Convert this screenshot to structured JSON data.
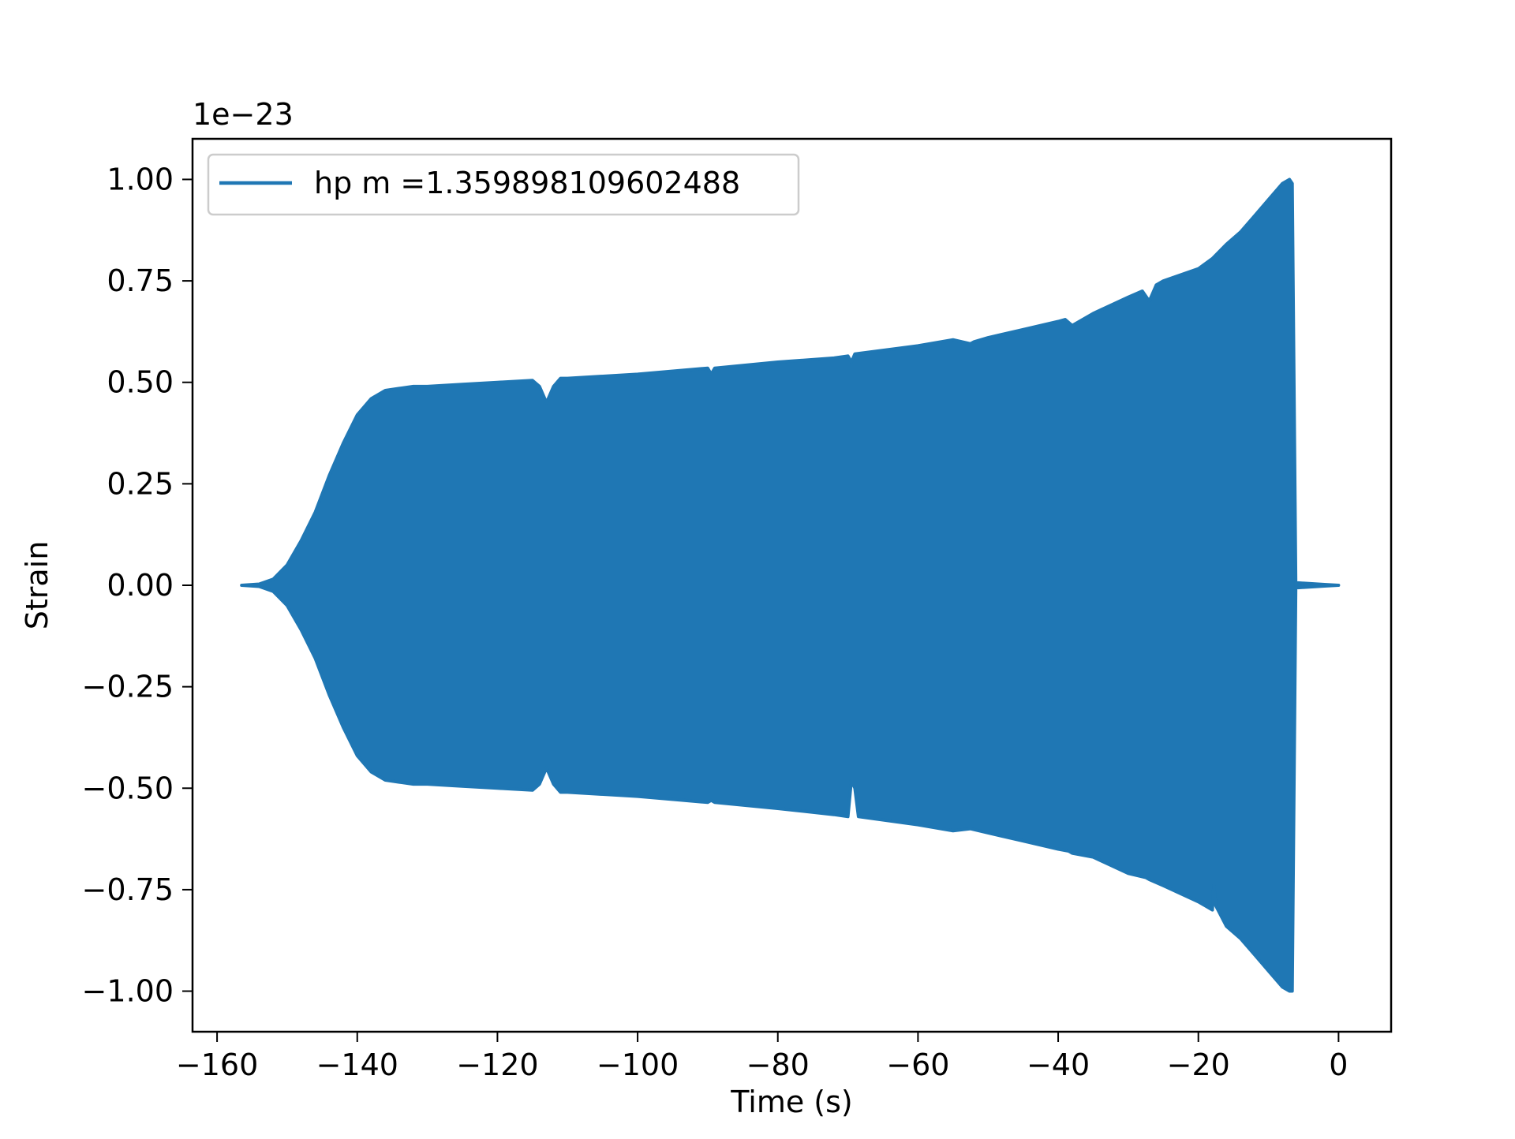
{
  "chart_data": {
    "type": "line",
    "title": "",
    "xlabel": "Time (s)",
    "ylabel": "Strain",
    "y_offset_label": "1e−23",
    "xlim": [
      -163.5,
      7.5
    ],
    "ylim": [
      -1.1,
      1.1
    ],
    "x_ticks": [
      -160,
      -140,
      -120,
      -100,
      -80,
      -60,
      -40,
      -20,
      0
    ],
    "x_tick_labels": [
      "−160",
      "−140",
      "−120",
      "−100",
      "−80",
      "−60",
      "−40",
      "−20",
      "0"
    ],
    "y_ticks": [
      1.0,
      0.75,
      0.5,
      0.25,
      0.0,
      -0.25,
      -0.5,
      -0.75,
      -1.0
    ],
    "y_tick_labels": [
      "1.00",
      "0.75",
      "0.50",
      "0.25",
      "0.00",
      "−0.25",
      "−0.50",
      "−0.75",
      "−1.00"
    ],
    "grid": false,
    "legend_position": "top-left",
    "series": [
      {
        "name": "hp m =1.359898109602488",
        "color": "#1f77b4",
        "envelope_upper": {
          "x": [
            -156.5,
            -154,
            -152,
            -150,
            -148,
            -146,
            -144,
            -142,
            -140,
            -138,
            -136,
            -134,
            -132,
            -130,
            -125,
            -120,
            -115,
            -114,
            -113,
            -112,
            -111,
            -110,
            -100,
            -90,
            -89.5,
            -89,
            -80,
            -72,
            -70,
            -69.5,
            -69,
            -60,
            -55,
            -52.5,
            -52,
            -50,
            -45,
            -40,
            -39,
            -38,
            -35,
            -30,
            -28,
            -27,
            -26,
            -25,
            -20,
            -18,
            -16,
            -14,
            -12,
            -10,
            -8,
            -7,
            -6.6,
            -6.1,
            -6.0,
            -5.8,
            -4,
            -2,
            0
          ],
          "y": [
            0.0,
            0.003,
            0.015,
            0.05,
            0.11,
            0.18,
            0.27,
            0.35,
            0.42,
            0.46,
            0.48,
            0.485,
            0.49,
            0.49,
            0.495,
            0.5,
            0.505,
            0.49,
            0.45,
            0.49,
            0.51,
            0.51,
            0.52,
            0.535,
            0.52,
            0.535,
            0.55,
            0.56,
            0.565,
            0.55,
            0.57,
            0.59,
            0.605,
            0.595,
            0.6,
            0.61,
            0.63,
            0.65,
            0.655,
            0.64,
            0.67,
            0.71,
            0.725,
            0.7,
            0.74,
            0.75,
            0.78,
            0.805,
            0.84,
            0.87,
            0.91,
            0.95,
            0.99,
            1.0,
            0.99,
            0.0,
            0.005,
            0.006,
            0.004,
            0.002,
            0.0
          ]
        },
        "envelope_lower": {
          "x": [
            -156.5,
            -154,
            -152,
            -150,
            -148,
            -146,
            -144,
            -142,
            -140,
            -138,
            -136,
            -134,
            -132,
            -130,
            -125,
            -120,
            -115,
            -114,
            -113,
            -112,
            -111,
            -110,
            -100,
            -90,
            -89.5,
            -89,
            -80,
            -72,
            -70,
            -69.5,
            -69,
            -68.5,
            -60,
            -55,
            -52.5,
            -50,
            -45,
            -40,
            -38.5,
            -38,
            -35,
            -30,
            -27.5,
            -27,
            -25,
            -20,
            -18,
            -17.8,
            -17.5,
            -16,
            -14,
            -12,
            -10,
            -8,
            -7,
            -6.6,
            -6.1,
            -6.0,
            -5.8,
            -4,
            -2,
            0
          ],
          "y": [
            0.0,
            -0.003,
            -0.015,
            -0.05,
            -0.11,
            -0.18,
            -0.27,
            -0.35,
            -0.42,
            -0.46,
            -0.48,
            -0.485,
            -0.49,
            -0.49,
            -0.495,
            -0.5,
            -0.505,
            -0.49,
            -0.45,
            -0.49,
            -0.51,
            -0.51,
            -0.52,
            -0.535,
            -0.53,
            -0.535,
            -0.55,
            -0.565,
            -0.57,
            -0.48,
            -0.5,
            -0.57,
            -0.59,
            -0.605,
            -0.6,
            -0.61,
            -0.63,
            -0.65,
            -0.655,
            -0.66,
            -0.67,
            -0.71,
            -0.72,
            -0.725,
            -0.74,
            -0.78,
            -0.8,
            -0.74,
            -0.79,
            -0.84,
            -0.87,
            -0.91,
            -0.95,
            -0.99,
            -1.0,
            -1.0,
            -0.0,
            -0.005,
            -0.006,
            -0.004,
            -0.002,
            -0.0
          ]
        }
      }
    ]
  }
}
